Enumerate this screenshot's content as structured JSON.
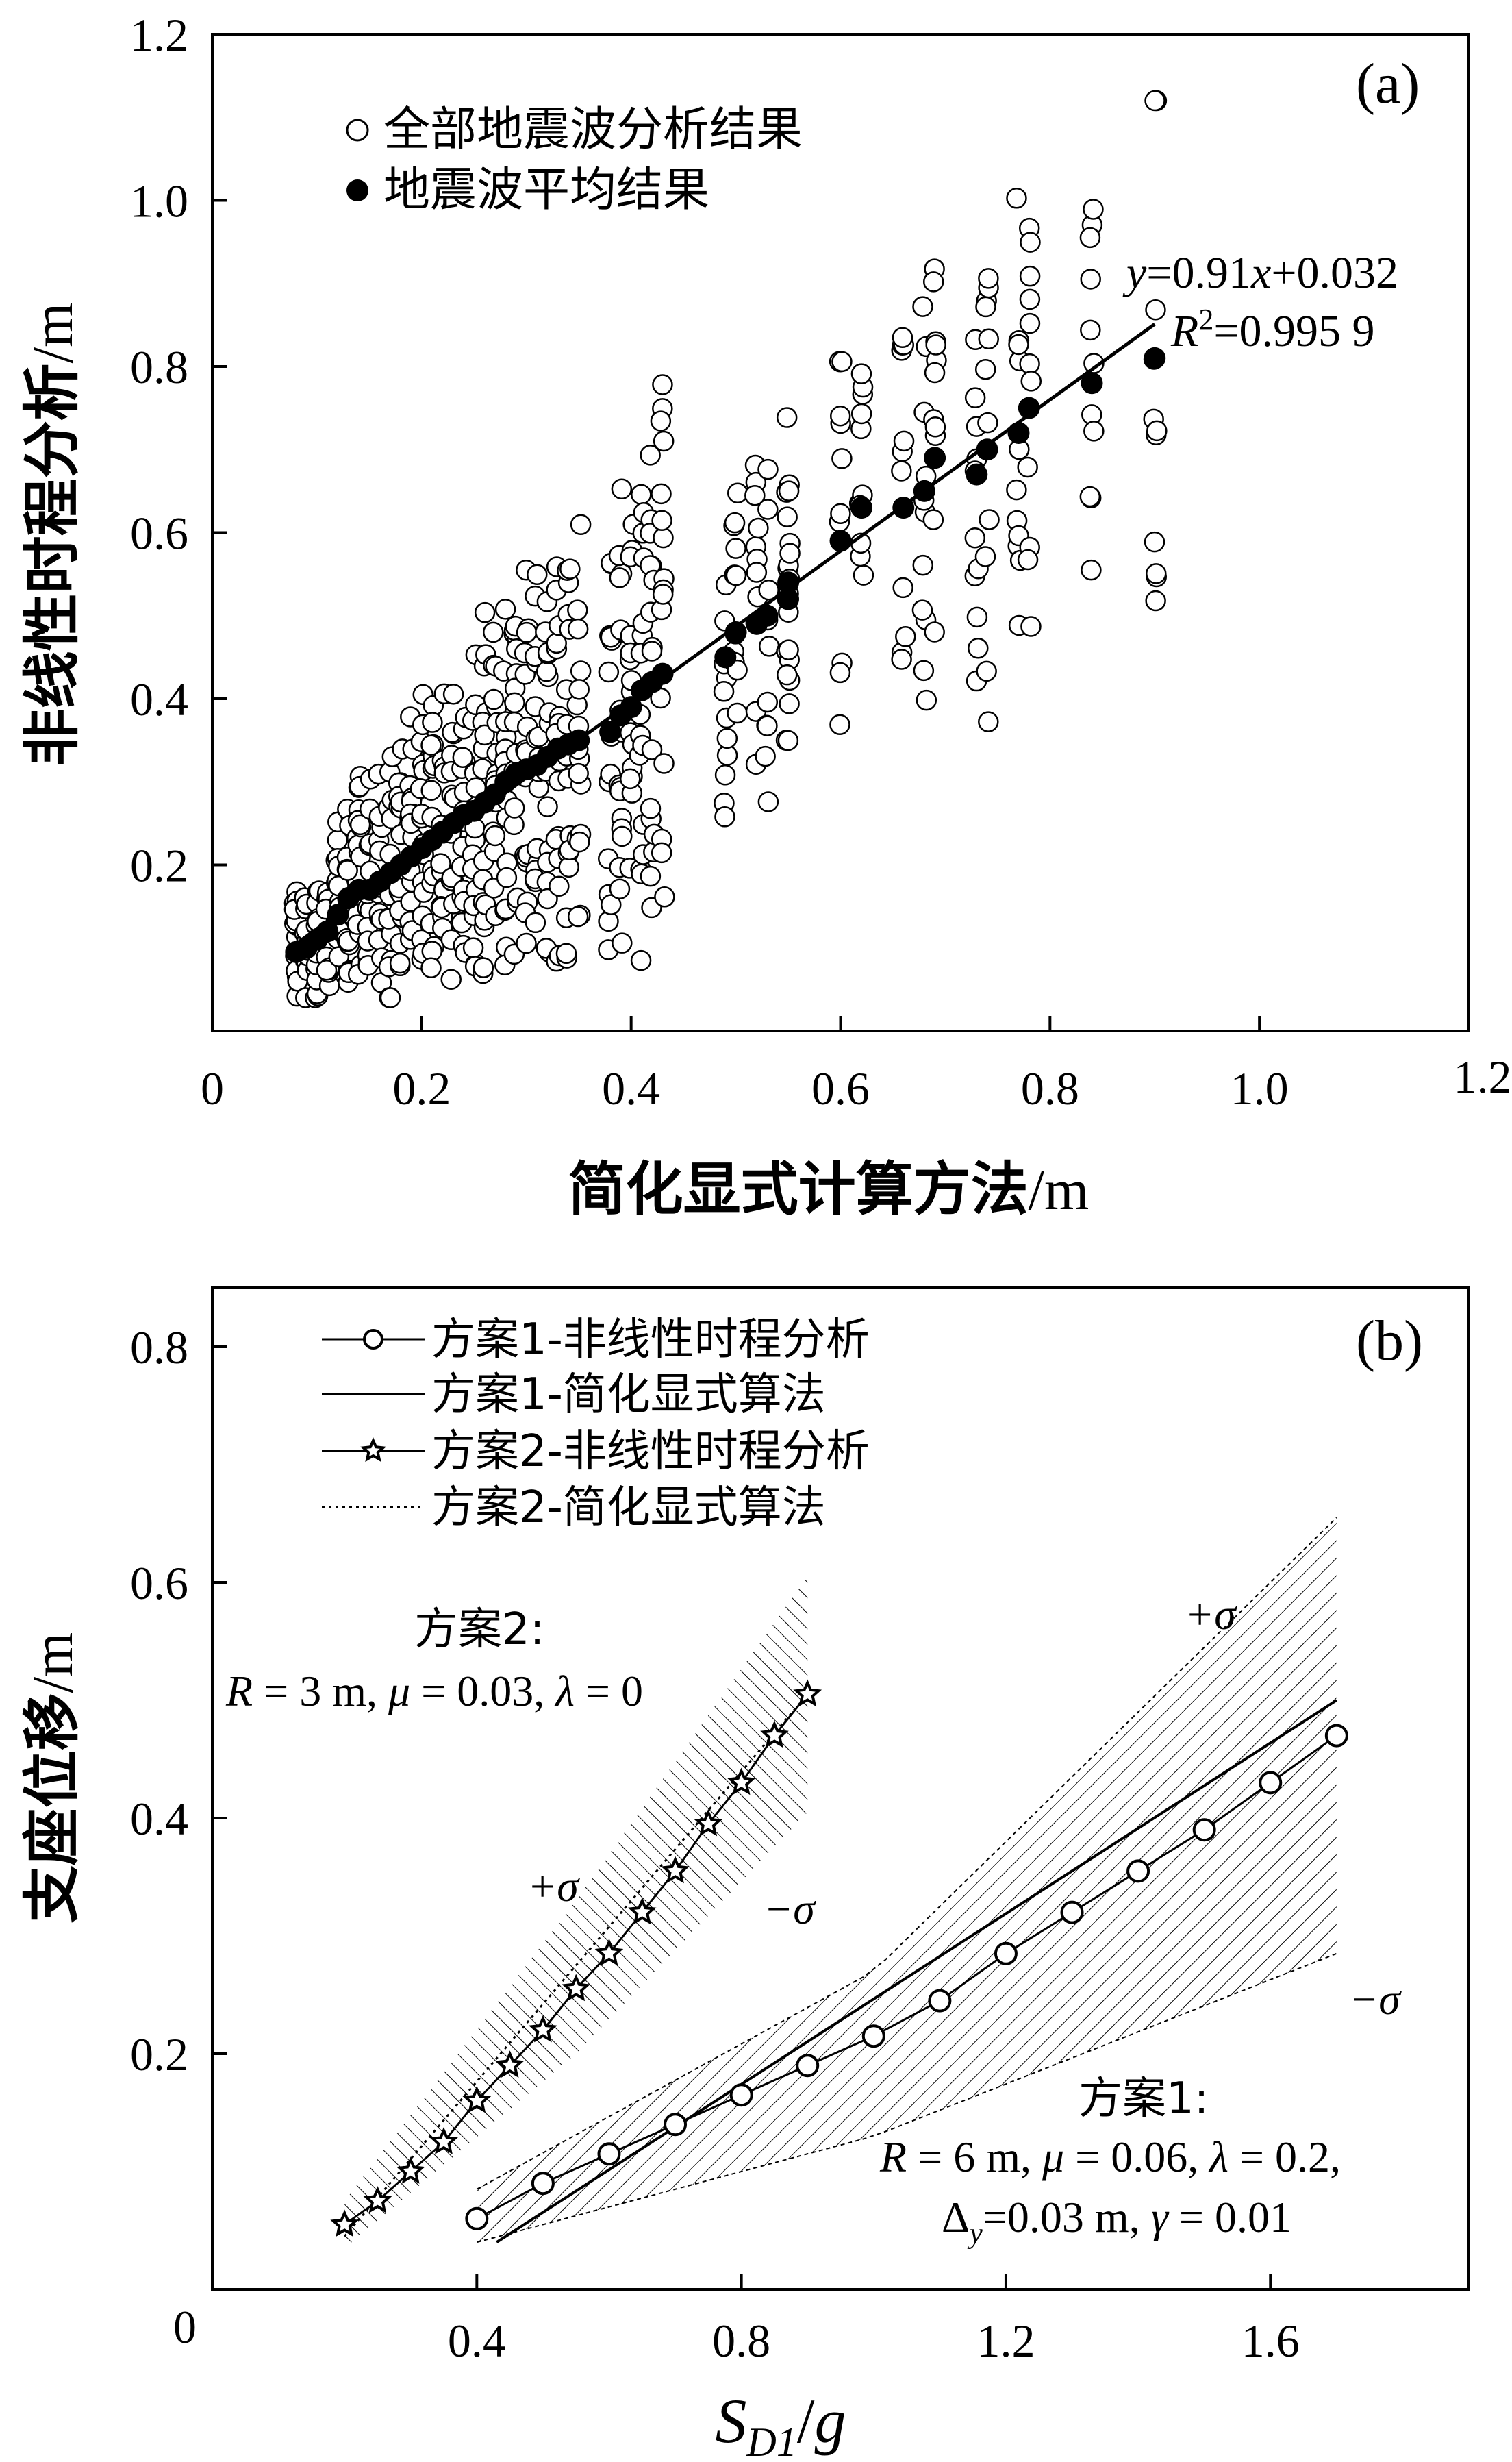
{
  "figure": "Displacement comparison chart",
  "panel_a": {
    "label": "(a)",
    "xlabel": "简化显式计算方法/m",
    "ylabel": "非线性时程分析/m",
    "xlim": [
      0,
      1.2
    ],
    "ylim": [
      0,
      1.2
    ],
    "x_ticks": [
      "0",
      "0.2",
      "0.4",
      "0.6",
      "0.8",
      "1.0",
      "1.2"
    ],
    "y_ticks": [
      "0.2",
      "0.4",
      "0.6",
      "0.8",
      "1.0",
      "1.2"
    ],
    "legend": [
      "全部地震波分析结果",
      "地震波平均结果"
    ],
    "equation_line1": "y=0.91x+0.032",
    "equation_line2": "R²=0.995 9",
    "regression": {
      "slope": 0.91,
      "intercept": 0.032,
      "x_range": [
        0.08,
        0.9
      ]
    }
  },
  "panel_b": {
    "label": "(b)",
    "xlabel": "S_D1/g",
    "ylabel": "支座位移/m",
    "xlim": [
      0,
      1.9
    ],
    "ylim": [
      0,
      0.85
    ],
    "x_ticks": [
      "0",
      "0.4",
      "0.8",
      "1.2",
      "1.6"
    ],
    "y_ticks": [
      "0.2",
      "0.4",
      "0.6",
      "0.8"
    ],
    "legend": [
      "方案1-非线性时程分析",
      "方案1-简化显式算法",
      "方案2-非线性时程分析",
      "方案2-简化显式算法"
    ],
    "scheme2_title": "方案2:",
    "scheme2_params": "R = 3 m,  μ = 0.03,  λ = 0",
    "scheme1_title": "方案1:",
    "scheme1_params1": "R = 6 m,  μ = 0.06,  λ = 0.2,",
    "scheme1_params2": "Δy=0.03 m,  γ = 0.01",
    "plus_sigma": "+σ",
    "minus_sigma": "−σ"
  },
  "chart_data": [
    {
      "type": "scatter",
      "panel": "a",
      "xlabel": "简化显式计算方法/m",
      "ylabel": "非线性时程分析/m",
      "xlim": [
        0,
        1.2
      ],
      "ylim": [
        0,
        1.2
      ],
      "series": [
        {
          "name": "地震波平均结果",
          "points": [
            [
              0.08,
              0.095
            ],
            [
              0.09,
              0.1
            ],
            [
              0.1,
              0.11
            ],
            [
              0.11,
              0.12
            ],
            [
              0.12,
              0.14
            ],
            [
              0.13,
              0.16
            ],
            [
              0.14,
              0.17
            ],
            [
              0.15,
              0.17
            ],
            [
              0.16,
              0.18
            ],
            [
              0.17,
              0.19
            ],
            [
              0.18,
              0.2
            ],
            [
              0.19,
              0.21
            ],
            [
              0.2,
              0.22
            ],
            [
              0.21,
              0.23
            ],
            [
              0.22,
              0.24
            ],
            [
              0.23,
              0.25
            ],
            [
              0.24,
              0.26
            ],
            [
              0.25,
              0.265
            ],
            [
              0.26,
              0.275
            ],
            [
              0.27,
              0.285
            ],
            [
              0.28,
              0.3
            ],
            [
              0.29,
              0.31
            ],
            [
              0.3,
              0.315
            ],
            [
              0.31,
              0.32
            ],
            [
              0.32,
              0.33
            ],
            [
              0.33,
              0.34
            ],
            [
              0.34,
              0.345
            ],
            [
              0.35,
              0.35
            ],
            [
              0.38,
              0.36
            ],
            [
              0.39,
              0.38
            ],
            [
              0.4,
              0.39
            ],
            [
              0.41,
              0.41
            ],
            [
              0.42,
              0.42
            ],
            [
              0.43,
              0.43
            ],
            [
              0.49,
              0.45
            ],
            [
              0.5,
              0.48
            ],
            [
              0.52,
              0.49
            ],
            [
              0.53,
              0.5
            ],
            [
              0.55,
              0.52
            ],
            [
              0.55,
              0.54
            ],
            [
              0.6,
              0.59
            ],
            [
              0.62,
              0.63
            ],
            [
              0.66,
              0.63
            ],
            [
              0.68,
              0.65
            ],
            [
              0.69,
              0.69
            ],
            [
              0.73,
              0.67
            ],
            [
              0.74,
              0.7
            ],
            [
              0.77,
              0.72
            ],
            [
              0.78,
              0.75
            ],
            [
              0.84,
              0.78
            ],
            [
              0.9,
              0.81
            ]
          ]
        },
        {
          "name": "全部地震波分析结果",
          "x_columns": [
            0.08,
            0.09,
            0.1,
            0.11,
            0.12,
            0.13,
            0.14,
            0.15,
            0.16,
            0.17,
            0.18,
            0.19,
            0.2,
            0.21,
            0.22,
            0.23,
            0.24,
            0.25,
            0.26,
            0.27,
            0.28,
            0.29,
            0.3,
            0.31,
            0.32,
            0.33,
            0.34,
            0.35,
            0.38,
            0.39,
            0.4,
            0.41,
            0.42,
            0.43,
            0.49,
            0.5,
            0.52,
            0.53,
            0.55,
            0.6,
            0.62,
            0.66,
            0.68,
            0.69,
            0.73,
            0.74,
            0.77,
            0.78,
            0.84,
            0.9
          ],
          "note": "Multiple waves per x column; spread roughly ±35% around the average result",
          "y_max": 1.12,
          "y_min": 0.04
        }
      ]
    },
    {
      "type": "line",
      "panel": "b",
      "xlabel": "S_D1/g",
      "ylabel": "支座位移/m",
      "xlim": [
        0,
        1.9
      ],
      "ylim": [
        0,
        0.85
      ],
      "series": [
        {
          "name": "方案1-非线性时程分析",
          "marker": "circle",
          "x": [
            0.4,
            0.5,
            0.6,
            0.7,
            0.8,
            0.9,
            1.0,
            1.1,
            1.2,
            1.3,
            1.4,
            1.5,
            1.6,
            1.7
          ],
          "y": [
            0.06,
            0.09,
            0.115,
            0.14,
            0.165,
            0.19,
            0.215,
            0.245,
            0.285,
            0.32,
            0.355,
            0.39,
            0.43,
            0.47
          ]
        },
        {
          "name": "方案1-简化显式算法",
          "x": [
            0.43,
            1.7
          ],
          "y": [
            0.04,
            0.5
          ]
        },
        {
          "name": "方案2-非线性时程分析",
          "marker": "star",
          "x": [
            0.2,
            0.25,
            0.3,
            0.35,
            0.4,
            0.45,
            0.5,
            0.55,
            0.6,
            0.65,
            0.7,
            0.75,
            0.8,
            0.85,
            0.9
          ],
          "y": [
            0.055,
            0.075,
            0.1,
            0.125,
            0.16,
            0.19,
            0.22,
            0.255,
            0.285,
            0.32,
            0.355,
            0.395,
            0.43,
            0.47,
            0.505
          ]
        },
        {
          "name": "方案2-简化显式算法",
          "style": "dotted",
          "x": [
            0.2,
            0.9
          ],
          "y": [
            0.045,
            0.505
          ]
        }
      ],
      "bands": [
        {
          "series": "方案1",
          "x": [
            0.4,
            1.0,
            1.7
          ],
          "upper": [
            0.085,
            0.27,
            0.655
          ],
          "lower": [
            0.04,
            0.13,
            0.285
          ]
        },
        {
          "series": "方案2",
          "x": [
            0.2,
            0.55,
            0.9
          ],
          "upper": [
            0.075,
            0.33,
            0.605
          ],
          "lower": [
            0.035,
            0.2,
            0.405
          ]
        }
      ]
    }
  ]
}
